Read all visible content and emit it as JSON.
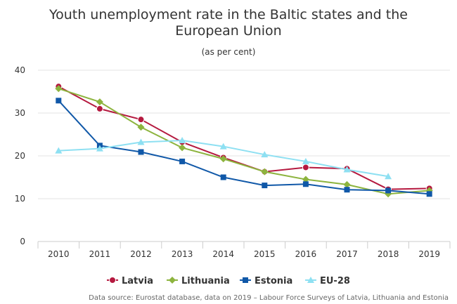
{
  "colors": {
    "latvia": "#b5193f",
    "lithuania": "#8db43e",
    "estonia": "#1058a8",
    "eu28": "#8ee0f2",
    "grid": "#e3e3e3",
    "axis": "#cccccc"
  },
  "chart_data": {
    "type": "line",
    "title_line1": "Youth unemployment rate in the Baltic states and the",
    "title_line2": "European Union",
    "subtitle": "(as per cent)",
    "x": [
      "2010",
      "2011",
      "2012",
      "2013",
      "2014",
      "2015",
      "2016",
      "2017",
      "2018",
      "2019"
    ],
    "ylim": [
      0,
      40
    ],
    "yticks": [
      "0",
      "10",
      "20",
      "30",
      "40"
    ],
    "grid": true,
    "legend_position": "bottom",
    "series": [
      {
        "name": "Latvia",
        "key": "latvia",
        "marker": "circle",
        "values": [
          36.2,
          31.0,
          28.5,
          23.2,
          19.6,
          16.3,
          17.3,
          17.0,
          12.2,
          12.4
        ]
      },
      {
        "name": "Lithuania",
        "key": "lithuania",
        "marker": "diamond",
        "values": [
          35.7,
          32.6,
          26.7,
          21.9,
          19.3,
          16.3,
          14.5,
          13.3,
          11.1,
          11.9
        ]
      },
      {
        "name": "Estonia",
        "key": "estonia",
        "marker": "square",
        "values": [
          32.9,
          22.4,
          20.9,
          18.7,
          15.0,
          13.1,
          13.4,
          12.1,
          11.9,
          11.1
        ]
      },
      {
        "name": "EU-28",
        "key": "eu28",
        "marker": "triangle",
        "values": [
          21.2,
          21.7,
          23.2,
          23.6,
          22.2,
          20.3,
          18.7,
          16.8,
          15.2,
          null
        ]
      }
    ],
    "source": "Data source: Eurostat database, data on 2019 – Labour Force Surveys of Latvia, Lithuania and Estonia"
  }
}
